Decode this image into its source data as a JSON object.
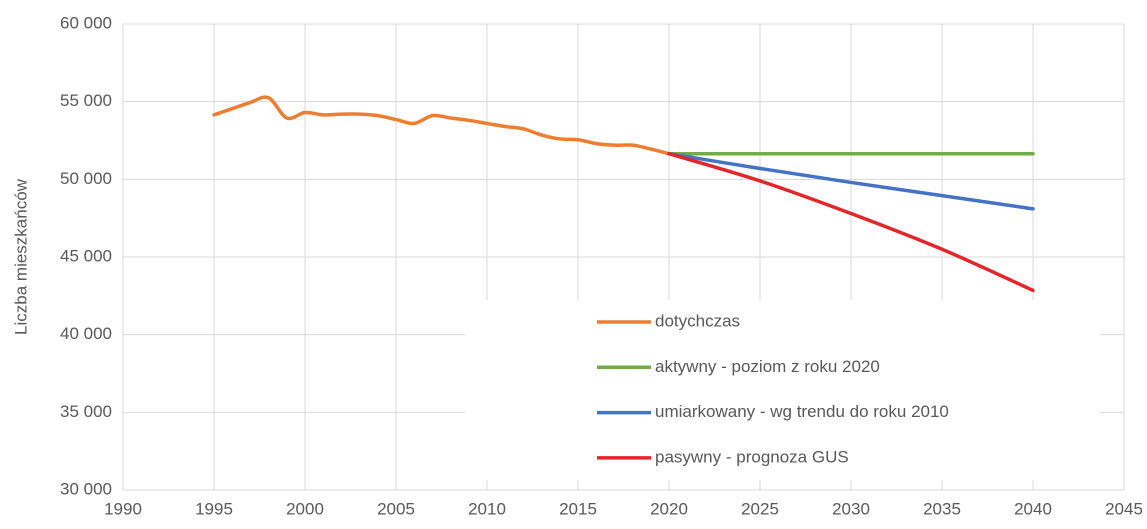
{
  "chart_data": {
    "type": "line",
    "y_label": "Liczba mieszkańców",
    "xlim": [
      1990,
      2045
    ],
    "xticks": [
      1990,
      1995,
      2000,
      2005,
      2010,
      2015,
      2020,
      2025,
      2030,
      2035,
      2040,
      2045
    ],
    "ylim": [
      30000,
      60000
    ],
    "yticks": [
      {
        "value": 30000,
        "label": "30 000"
      },
      {
        "value": 35000,
        "label": "35 000"
      },
      {
        "value": 40000,
        "label": "40 000"
      },
      {
        "value": 45000,
        "label": "45 000"
      },
      {
        "value": 50000,
        "label": "50 000"
      },
      {
        "value": 55000,
        "label": "55 000"
      },
      {
        "value": 60000,
        "label": "60 000"
      }
    ],
    "grid": true,
    "legend": "lower-right",
    "smooth": true,
    "series": [
      {
        "name": "dotychczas",
        "color": "#ed7d31",
        "x": [
          1995,
          1996,
          1997,
          1998,
          1999,
          2000,
          2001,
          2002,
          2003,
          2004,
          2005,
          2006,
          2007,
          2008,
          2009,
          2010,
          2011,
          2012,
          2013,
          2014,
          2015,
          2016,
          2017,
          2018,
          2019,
          2020
        ],
        "values": [
          54150,
          54550,
          54950,
          55250,
          53950,
          54300,
          54150,
          54200,
          54200,
          54100,
          53850,
          53600,
          54100,
          53950,
          53800,
          53600,
          53400,
          53250,
          52850,
          52600,
          52550,
          52300,
          52200,
          52200,
          51950,
          51650
        ]
      },
      {
        "name": "aktywny - poziom z roku 2020",
        "color": "#70ad47",
        "x": [
          2020,
          2025,
          2030,
          2035,
          2040
        ],
        "values": [
          51650,
          51650,
          51650,
          51650,
          51650
        ]
      },
      {
        "name": "umiarkowany - wg trendu do roku 2010",
        "color": "#4472c4",
        "x": [
          2020,
          2025,
          2030,
          2035,
          2040
        ],
        "values": [
          51650,
          50700,
          49800,
          48950,
          48100
        ]
      },
      {
        "name": "pasywny - prognoza GUS",
        "color": "#e3262a",
        "x": [
          2020,
          2025,
          2030,
          2035,
          2040
        ],
        "values": [
          51650,
          49900,
          47800,
          45500,
          42850
        ]
      }
    ]
  }
}
